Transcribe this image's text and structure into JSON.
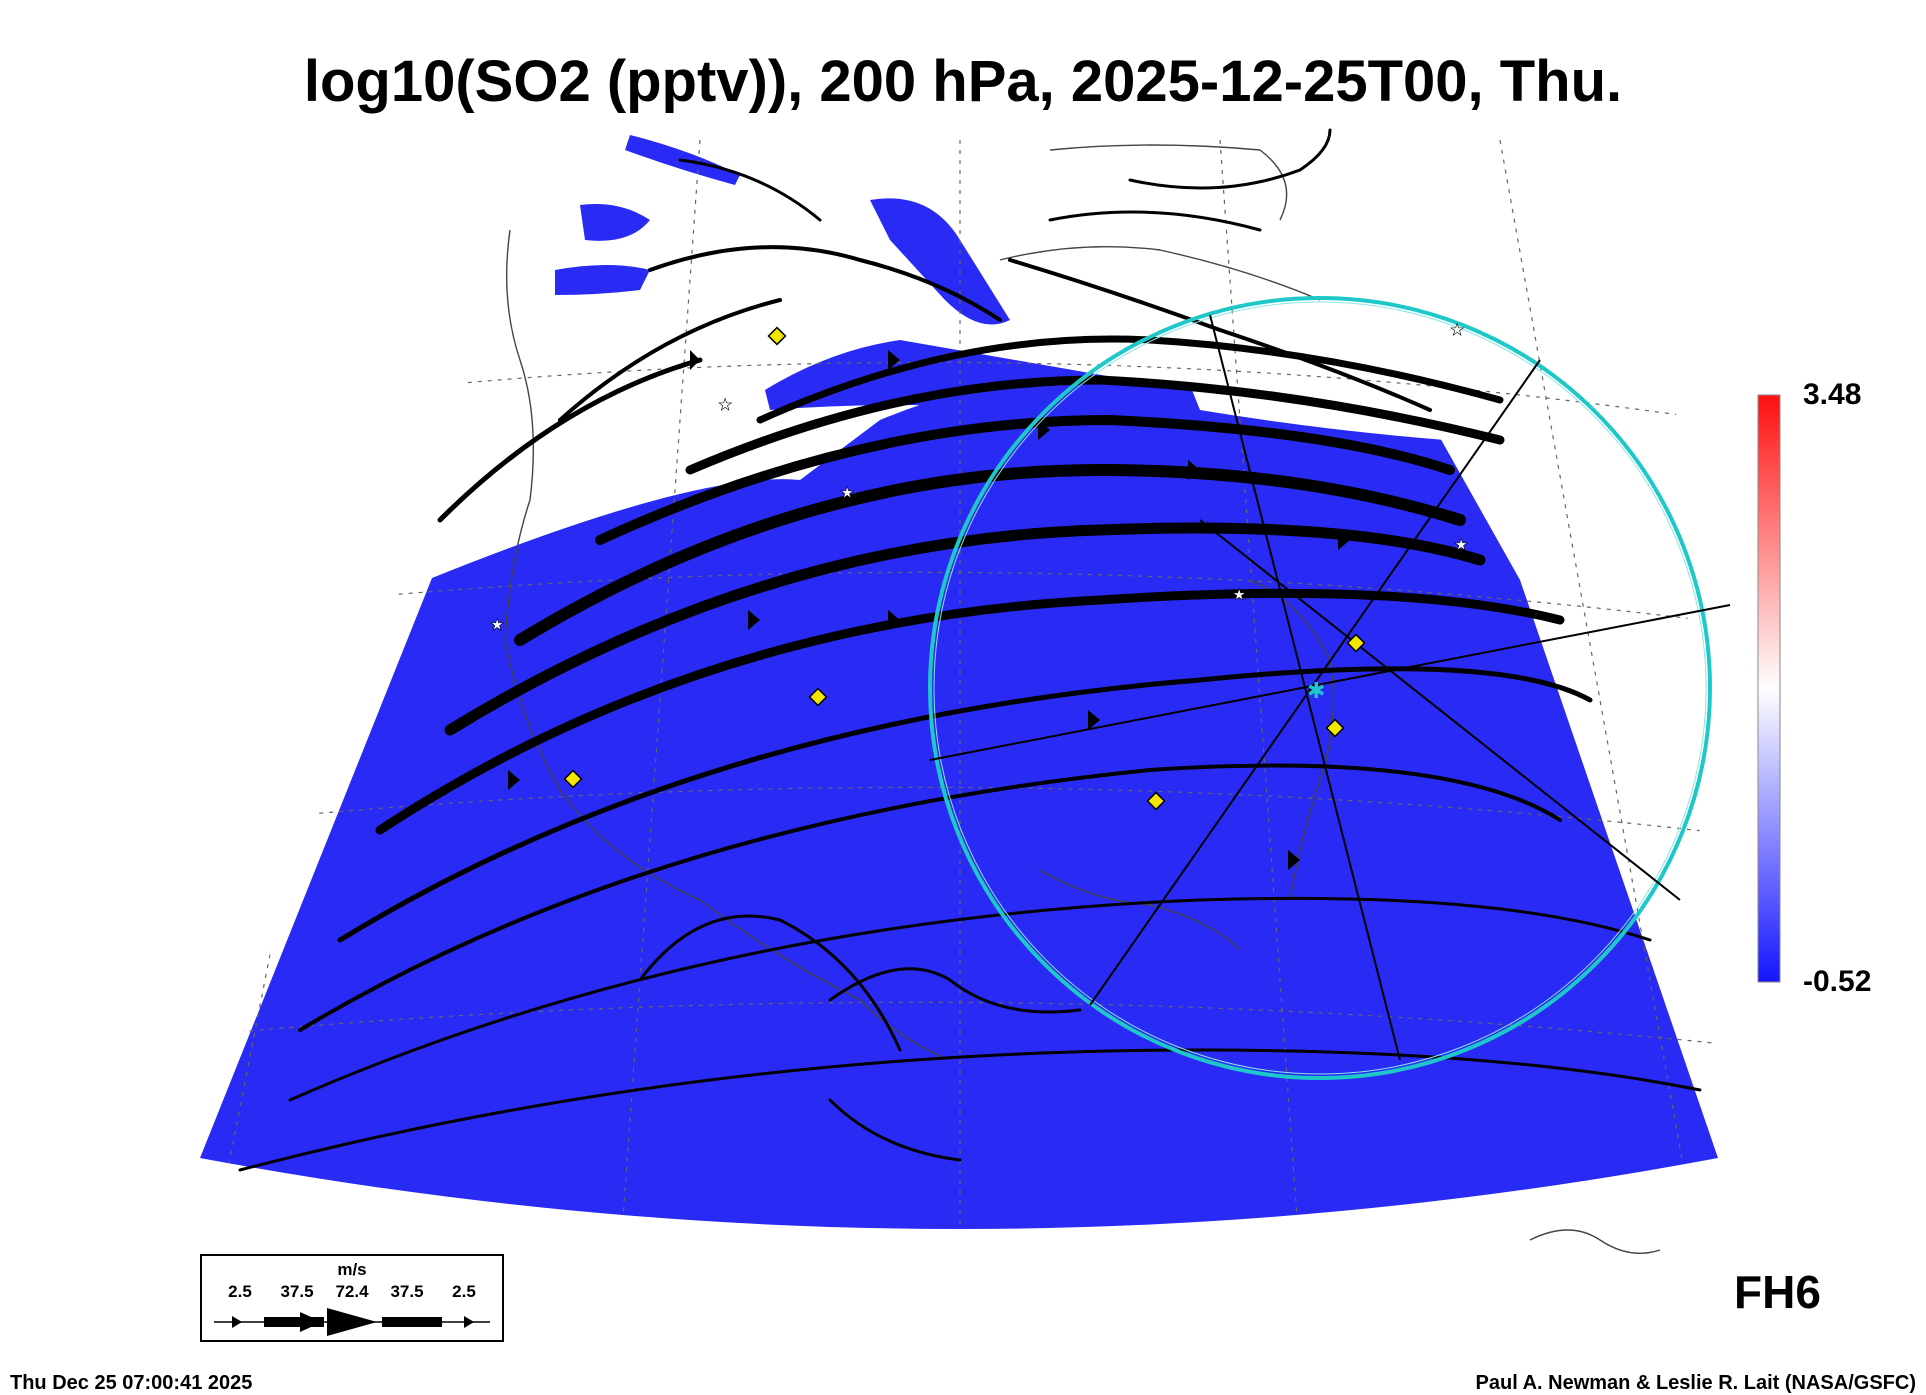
{
  "title": "log10(SO2 (pptv)), 200 hPa, 2025-12-25T00, Thu.",
  "colorbar": {
    "max_label": "3.48",
    "min_label": "-0.52",
    "colors": {
      "low": "#1515ff",
      "mid": "#ffffff",
      "high": "#ff1010"
    }
  },
  "field_colors": {
    "fill": "#2a2af5",
    "fill_dark": "#1a1ae6",
    "ring": "#1ec8c8",
    "marker": "#f5e600"
  },
  "wind_legend": {
    "unit": "m/s",
    "values": [
      "2.5",
      "37.5",
      "72.4",
      "37.5",
      "2.5"
    ]
  },
  "forecast_hour": "FH6",
  "footer": {
    "timestamp": "Thu Dec 25 07:00:41 2025",
    "credit": "Paul A. Newman & Leslie R. Lait (NASA/GSFC)"
  }
}
